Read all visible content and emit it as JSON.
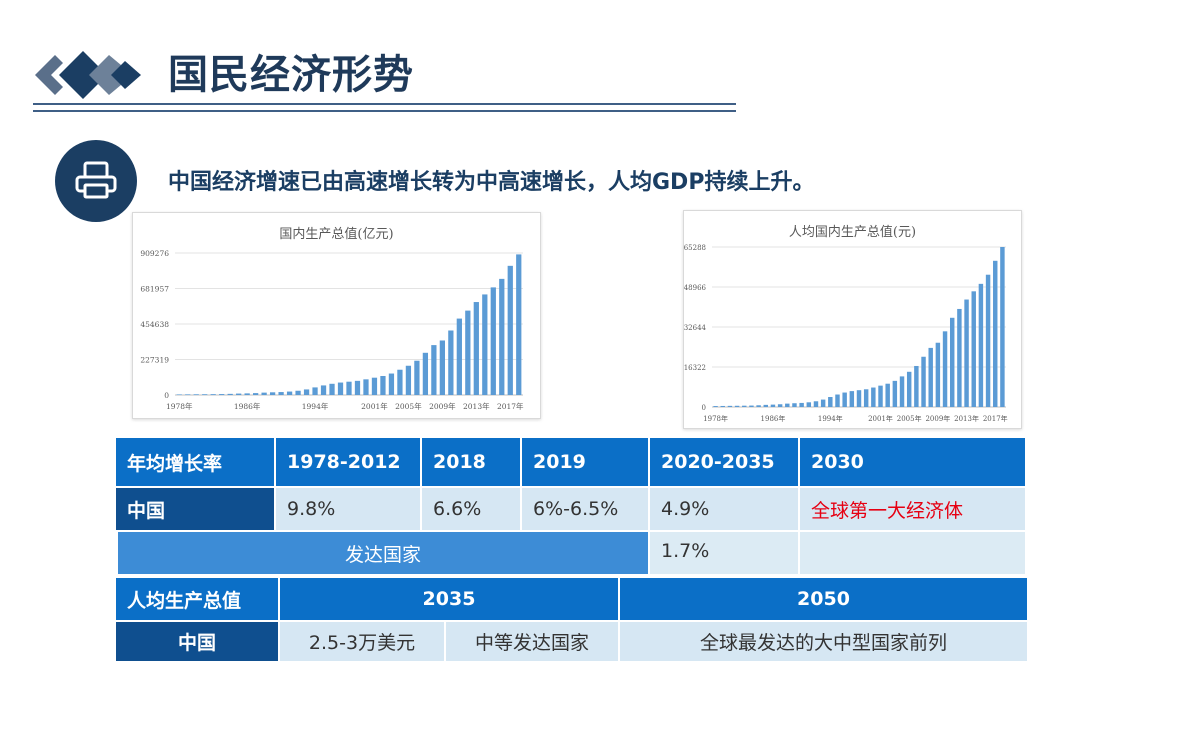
{
  "header": {
    "title": "国民经济形势",
    "subtitle": "中国经济增速已由高速增长转为中高速增长，人均GDP持续上升。"
  },
  "colors": {
    "accent": "#1b3e63",
    "table_header": "#0b6fc7",
    "table_row_header": "#0f4f8f",
    "bar": "#5b9bd5",
    "highlight": "#e60012"
  },
  "icons": {
    "logo": "double-diamond-arrows-icon",
    "bullet": "printer-icon"
  },
  "chart_data": [
    {
      "type": "bar",
      "title": "国内生产总值(亿元)",
      "x_tick_labels": [
        "1978年",
        "1986年",
        "1994年",
        "2001年",
        "2005年",
        "2009年",
        "2013年",
        "2017年"
      ],
      "categories": [
        "1978",
        "1979",
        "1980",
        "1981",
        "1982",
        "1983",
        "1984",
        "1985",
        "1986",
        "1987",
        "1988",
        "1989",
        "1990",
        "1991",
        "1992",
        "1993",
        "1994",
        "1995",
        "1996",
        "1997",
        "1998",
        "1999",
        "2000",
        "2001",
        "2002",
        "2003",
        "2004",
        "2005",
        "2006",
        "2007",
        "2008",
        "2009",
        "2010",
        "2011",
        "2012",
        "2013",
        "2014",
        "2015",
        "2016",
        "2017",
        "2018"
      ],
      "values": [
        3679,
        4101,
        4588,
        4936,
        5373,
        6021,
        7279,
        9099,
        10376,
        12175,
        15180,
        17180,
        18873,
        22006,
        27195,
        35673,
        48638,
        61340,
        71814,
        79715,
        85196,
        90564,
        100280,
        110863,
        121717,
        137422,
        161840,
        187319,
        219439,
        270232,
        319516,
        349081,
        413030,
        489301,
        540367,
        595244,
        643974,
        689052,
        743586,
        827122,
        900309
      ],
      "y_ticks": [
        0,
        227319,
        454638,
        681957,
        909276
      ],
      "ylim": [
        0,
        909276
      ],
      "grid": true
    },
    {
      "type": "bar",
      "title": "人均国内生产总值(元)",
      "x_tick_labels": [
        "1978年",
        "1986年",
        "1994年",
        "2001年",
        "2005年",
        "2009年",
        "2013年",
        "2017年"
      ],
      "categories": [
        "1978",
        "1979",
        "1980",
        "1981",
        "1982",
        "1983",
        "1984",
        "1985",
        "1986",
        "1987",
        "1988",
        "1989",
        "1990",
        "1991",
        "1992",
        "1993",
        "1994",
        "1995",
        "1996",
        "1997",
        "1998",
        "1999",
        "2000",
        "2001",
        "2002",
        "2003",
        "2004",
        "2005",
        "2006",
        "2007",
        "2008",
        "2009",
        "2010",
        "2011",
        "2012",
        "2013",
        "2014",
        "2015",
        "2016",
        "2017",
        "2018"
      ],
      "values": [
        385,
        423,
        468,
        497,
        533,
        588,
        702,
        866,
        973,
        1123,
        1378,
        1536,
        1663,
        1912,
        2334,
        3027,
        4081,
        5091,
        5898,
        6481,
        6860,
        7229,
        7942,
        8717,
        9506,
        10666,
        12487,
        14368,
        16738,
        20505,
        24121,
        26222,
        30876,
        36403,
        40007,
        43852,
        47203,
        50251,
        53980,
        59660,
        65288
      ],
      "y_ticks": [
        0,
        16322,
        32644,
        48966,
        65288
      ],
      "ylim": [
        0,
        65288
      ],
      "grid": true
    }
  ],
  "growth_table": {
    "header": [
      "年均增长率",
      "1978-2012",
      "2018",
      "2019",
      "2020-2035",
      "2030"
    ],
    "china": [
      "中国",
      "9.8%",
      "6.6%",
      "6%-6.5%",
      "4.9%",
      "全球第一大经济体"
    ],
    "developed_label": "发达国家",
    "developed_value": "1.7%",
    "developed_extra": ""
  },
  "per_capita_table": {
    "header": [
      "人均生产总值",
      "2035",
      "2050"
    ],
    "china": [
      "中国",
      "2.5-3万美元",
      "中等发达国家",
      "全球最发达的大中型国家前列"
    ]
  }
}
